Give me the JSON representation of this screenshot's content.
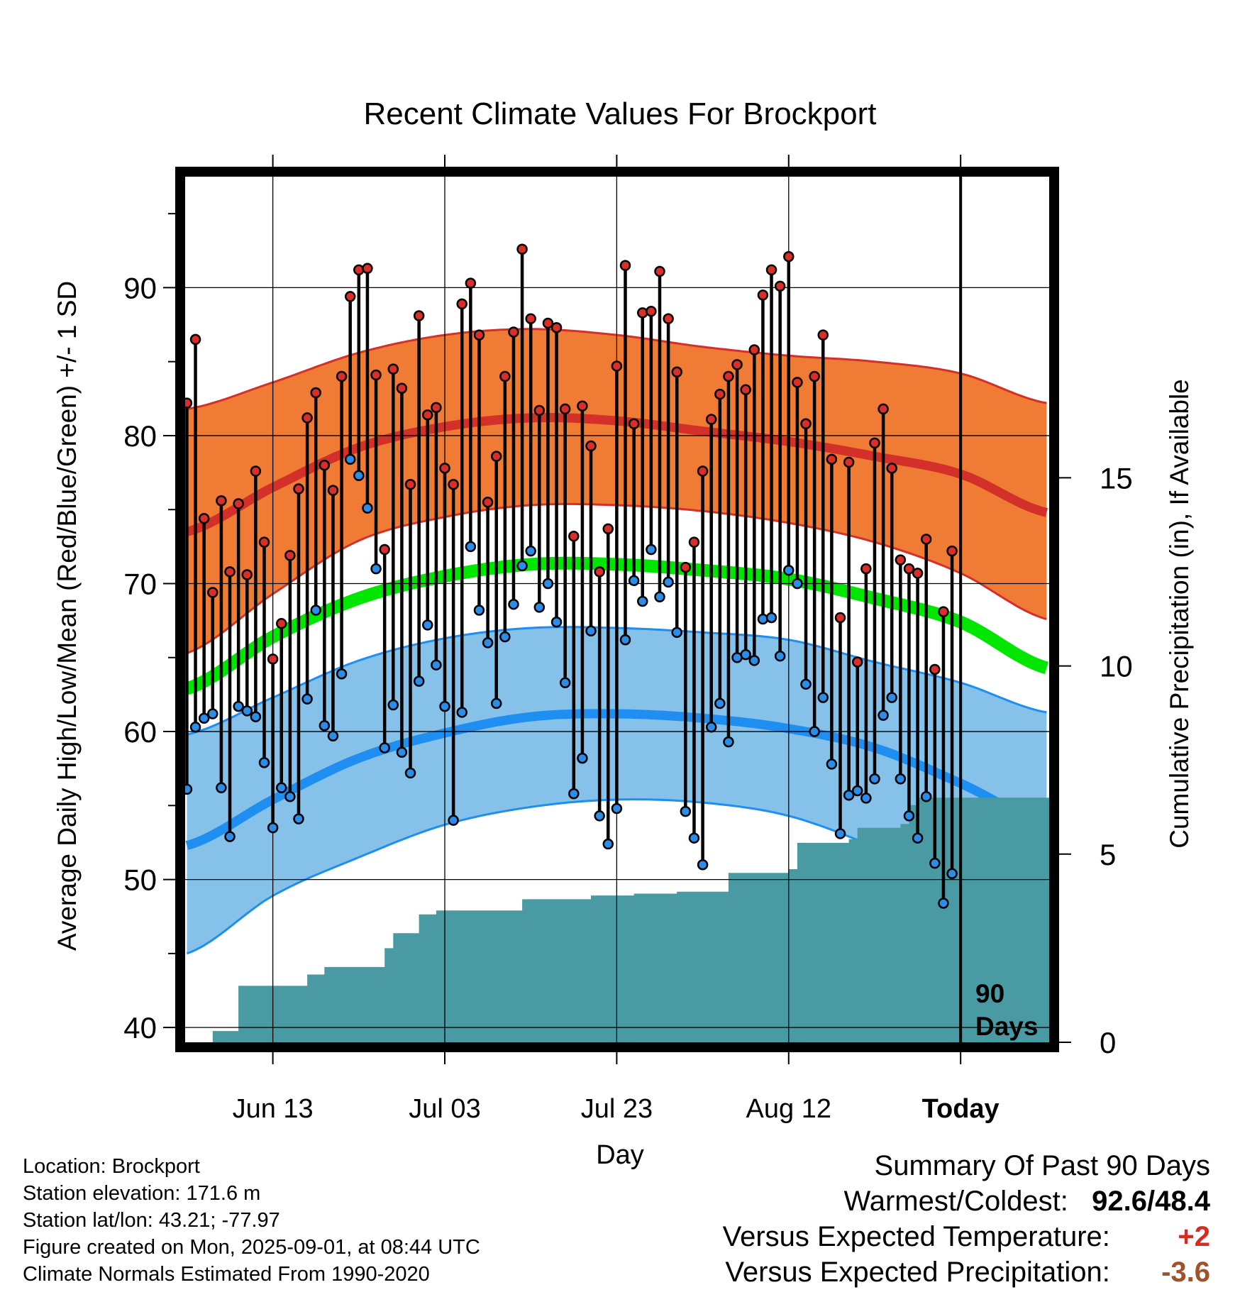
{
  "chart_data": {
    "type": "line",
    "title": "Recent Climate Values For Brockport",
    "xlabel": "Day",
    "ylabel": "Average Daily High/Low/Mean (Red/Blue/Green) +/- 1 SD",
    "y2label": "Cumulative Precipitation (in), If Available",
    "ylim": [
      39,
      97.5
    ],
    "y2lim": [
      0,
      23
    ],
    "yticks": [
      40,
      50,
      60,
      70,
      80,
      90
    ],
    "y2ticks": [
      0,
      5,
      10,
      15
    ],
    "x_tick_labels": [
      "Jun 13",
      "Jul 03",
      "Jul 23",
      "Aug 12",
      "Today"
    ],
    "x_tick_days": [
      10,
      30,
      50,
      70,
      90
    ],
    "x_range_days": [
      -0.2,
      100.3
    ],
    "today_marker_label": [
      "90",
      "Days"
    ],
    "colors": {
      "high_band": "#f07b34",
      "high_mean": "#d3302a",
      "low_band": "#85c1e8",
      "low_mean": "#1e8ef0",
      "mean_line": "#00e600",
      "precip": "#4a9aa3",
      "high_point": "#d92e2a",
      "low_point": "#2b8de8"
    },
    "normals_days": [
      0,
      10,
      20,
      30,
      40,
      50,
      60,
      70,
      80,
      90,
      100
    ],
    "normal_high": [
      73.5,
      76.5,
      79.2,
      80.6,
      81.2,
      81.0,
      80.3,
      79.6,
      78.6,
      77.4,
      74.8
    ],
    "normal_high_upper": [
      81.8,
      83.6,
      85.6,
      86.8,
      87.2,
      86.8,
      86.0,
      85.4,
      85.0,
      84.2,
      82.2
    ],
    "normal_high_lower": [
      65.3,
      69.3,
      72.9,
      74.5,
      75.3,
      75.3,
      74.9,
      74.1,
      72.8,
      70.7,
      67.6
    ],
    "normal_mean": [
      62.9,
      66.4,
      69.0,
      70.5,
      71.3,
      71.3,
      70.9,
      70.3,
      69.0,
      67.4,
      64.3
    ],
    "normal_low": [
      52.3,
      55.4,
      58.2,
      59.9,
      61.0,
      61.2,
      60.9,
      60.2,
      58.9,
      56.5,
      53.8
    ],
    "normal_low_upper": [
      59.8,
      62.3,
      64.8,
      66.3,
      67.0,
      67.0,
      66.7,
      66.2,
      64.7,
      63.3,
      61.3
    ],
    "normal_low_lower": [
      45.0,
      48.9,
      51.5,
      53.7,
      54.9,
      55.4,
      55.2,
      54.3,
      52.2,
      49.6,
      46.7
    ],
    "daily_high": [
      82.2,
      86.5,
      74.4,
      69.4,
      75.6,
      70.8,
      75.4,
      70.6,
      77.6,
      72.8,
      64.9,
      67.3,
      71.9,
      76.4,
      81.2,
      82.9,
      78.0,
      76.3,
      84.0,
      89.4,
      91.2,
      91.3,
      84.1,
      72.3,
      84.5,
      83.2,
      76.7,
      88.1,
      81.4,
      81.9,
      77.8,
      76.7,
      88.9,
      90.3,
      86.8,
      75.5,
      78.6,
      84.0,
      87.0,
      92.6,
      87.9,
      81.7,
      87.6,
      87.3,
      81.8,
      73.2,
      82.0,
      79.3,
      70.8,
      73.7,
      84.7,
      91.5,
      80.8,
      88.3,
      88.4,
      91.1,
      87.9,
      84.3,
      71.1,
      72.8,
      77.6,
      81.1,
      82.8,
      84.0,
      84.8,
      83.1,
      85.8,
      89.5,
      91.2,
      90.1,
      92.1,
      83.6,
      80.8,
      84.0,
      86.8,
      78.4,
      67.7,
      78.2,
      64.7,
      71.0,
      79.5,
      81.8,
      77.8,
      71.6,
      71.0,
      70.7,
      73.0,
      64.2,
      68.1,
      72.2
    ],
    "daily_low": [
      56.1,
      60.3,
      60.9,
      61.2,
      56.2,
      52.9,
      61.7,
      61.4,
      61.0,
      57.9,
      53.5,
      56.2,
      55.6,
      54.1,
      62.2,
      68.2,
      60.4,
      59.7,
      63.9,
      78.4,
      77.3,
      75.1,
      71.0,
      58.9,
      61.8,
      58.6,
      57.2,
      63.4,
      67.2,
      64.5,
      61.7,
      54.0,
      61.3,
      72.5,
      68.2,
      66.0,
      61.9,
      66.4,
      68.6,
      71.2,
      72.2,
      68.4,
      70.0,
      67.4,
      63.3,
      55.8,
      58.2,
      66.8,
      54.3,
      52.4,
      54.8,
      66.2,
      70.2,
      68.8,
      72.3,
      69.1,
      70.1,
      66.7,
      54.6,
      52.8,
      51.0,
      60.3,
      61.9,
      59.3,
      65.0,
      65.2,
      64.8,
      67.6,
      67.7,
      65.1,
      70.9,
      70.0,
      63.2,
      60.0,
      62.3,
      57.8,
      53.1,
      55.7,
      56.0,
      55.5,
      56.8,
      61.1,
      62.3,
      56.8,
      54.3,
      52.8,
      55.6,
      51.1,
      48.4,
      50.4
    ],
    "precip_steps": [
      {
        "start": 0,
        "value": 0.0
      },
      {
        "start": 3,
        "value": 0.3
      },
      {
        "start": 6,
        "value": 1.5
      },
      {
        "start": 14,
        "value": 1.8
      },
      {
        "start": 16,
        "value": 2.0
      },
      {
        "start": 23,
        "value": 2.5
      },
      {
        "start": 24,
        "value": 2.9
      },
      {
        "start": 27,
        "value": 3.4
      },
      {
        "start": 29,
        "value": 3.5
      },
      {
        "start": 39,
        "value": 3.8
      },
      {
        "start": 47,
        "value": 3.9
      },
      {
        "start": 52,
        "value": 3.95
      },
      {
        "start": 57,
        "value": 4.0
      },
      {
        "start": 63,
        "value": 4.5
      },
      {
        "start": 70,
        "value": 4.6
      },
      {
        "start": 71,
        "value": 5.3
      },
      {
        "start": 77,
        "value": 5.4
      },
      {
        "start": 78,
        "value": 5.7
      },
      {
        "start": 83,
        "value": 5.8
      },
      {
        "start": 84,
        "value": 6.3
      },
      {
        "start": 85,
        "value": 6.5
      },
      {
        "start": 100.3,
        "value": 6.5
      }
    ]
  },
  "info": {
    "location": "Location: Brockport",
    "elevation": "Station elevation: 171.6 m",
    "latlon": "Station lat/lon: 43.21; -77.97",
    "created": "Figure created on Mon, 2025-09-01, at 08:44 UTC",
    "normals": "Climate Normals Estimated From 1990-2020"
  },
  "summary": {
    "heading": "Summary Of Past 90 Days",
    "warmest_coldest_label": "Warmest/Coldest:",
    "warmest": "92.6",
    "slash": "/",
    "coldest": "48.4",
    "temp_label": "Versus Expected Temperature:",
    "temp_value": "+2",
    "temp_color": "#d42b23",
    "precip_label": "Versus Expected Precipitation:",
    "precip_value": "-3.6",
    "precip_color": "#a0522d"
  }
}
